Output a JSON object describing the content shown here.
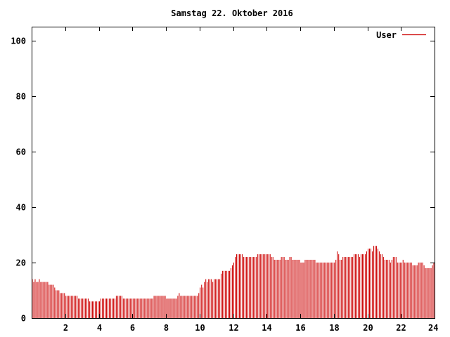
{
  "chart_data": {
    "type": "bar",
    "title": "Samstag 22. Oktober 2016",
    "xlabel": "",
    "ylabel": "",
    "xlim": [
      0,
      24
    ],
    "ylim": [
      0,
      105
    ],
    "x_ticks": [
      2,
      4,
      6,
      8,
      10,
      12,
      14,
      16,
      18,
      20,
      22,
      24
    ],
    "y_ticks": [
      0,
      20,
      40,
      60,
      80,
      100
    ],
    "grid": false,
    "legend_position": "top-right",
    "series": [
      {
        "name": "User",
        "color": "#cc0000",
        "sampling_minutes": 5,
        "values": [
          14,
          13,
          14,
          13,
          13,
          14,
          13,
          13,
          13,
          13,
          13,
          13,
          12,
          12,
          12,
          12,
          11,
          10,
          10,
          10,
          9,
          9,
          9,
          9,
          8,
          8,
          8,
          8,
          8,
          8,
          8,
          8,
          8,
          7,
          7,
          7,
          7,
          7,
          7,
          7,
          7,
          6,
          6,
          6,
          6,
          6,
          6,
          6,
          6,
          7,
          7,
          7,
          7,
          7,
          7,
          7,
          7,
          7,
          7,
          7,
          8,
          8,
          8,
          8,
          8,
          7,
          7,
          7,
          7,
          7,
          7,
          7,
          7,
          7,
          7,
          7,
          7,
          7,
          7,
          7,
          7,
          7,
          7,
          7,
          7,
          7,
          7,
          8,
          8,
          8,
          8,
          8,
          8,
          8,
          8,
          8,
          7,
          7,
          7,
          7,
          7,
          7,
          7,
          7,
          8,
          9,
          8,
          8,
          8,
          8,
          8,
          8,
          8,
          8,
          8,
          8,
          8,
          8,
          8,
          9,
          11,
          12,
          11,
          13,
          14,
          13,
          14,
          14,
          14,
          13,
          14,
          14,
          14,
          14,
          14,
          16,
          17,
          17,
          17,
          17,
          17,
          17,
          18,
          19,
          20,
          22,
          23,
          23,
          23,
          23,
          23,
          22,
          22,
          22,
          22,
          22,
          22,
          22,
          22,
          22,
          22,
          23,
          23,
          23,
          23,
          23,
          23,
          23,
          23,
          23,
          23,
          22,
          22,
          21,
          21,
          21,
          21,
          21,
          22,
          22,
          22,
          21,
          21,
          21,
          22,
          22,
          21,
          21,
          21,
          21,
          21,
          21,
          20,
          20,
          20,
          21,
          21,
          21,
          21,
          21,
          21,
          21,
          21,
          20,
          20,
          20,
          20,
          20,
          20,
          20,
          20,
          20,
          20,
          20,
          20,
          20,
          20,
          21,
          24,
          23,
          21,
          21,
          22,
          22,
          22,
          22,
          22,
          22,
          22,
          22,
          23,
          23,
          23,
          23,
          22,
          23,
          23,
          23,
          23,
          24,
          25,
          25,
          25,
          24,
          26,
          26,
          26,
          25,
          24,
          23,
          23,
          22,
          21,
          21,
          21,
          21,
          20,
          21,
          22,
          22,
          22,
          20,
          20,
          20,
          20,
          21,
          20,
          20,
          20,
          20,
          20,
          20,
          19,
          19,
          19,
          19,
          20,
          20,
          20,
          20,
          19,
          18,
          18,
          18,
          18,
          18,
          19,
          20
        ]
      }
    ]
  }
}
